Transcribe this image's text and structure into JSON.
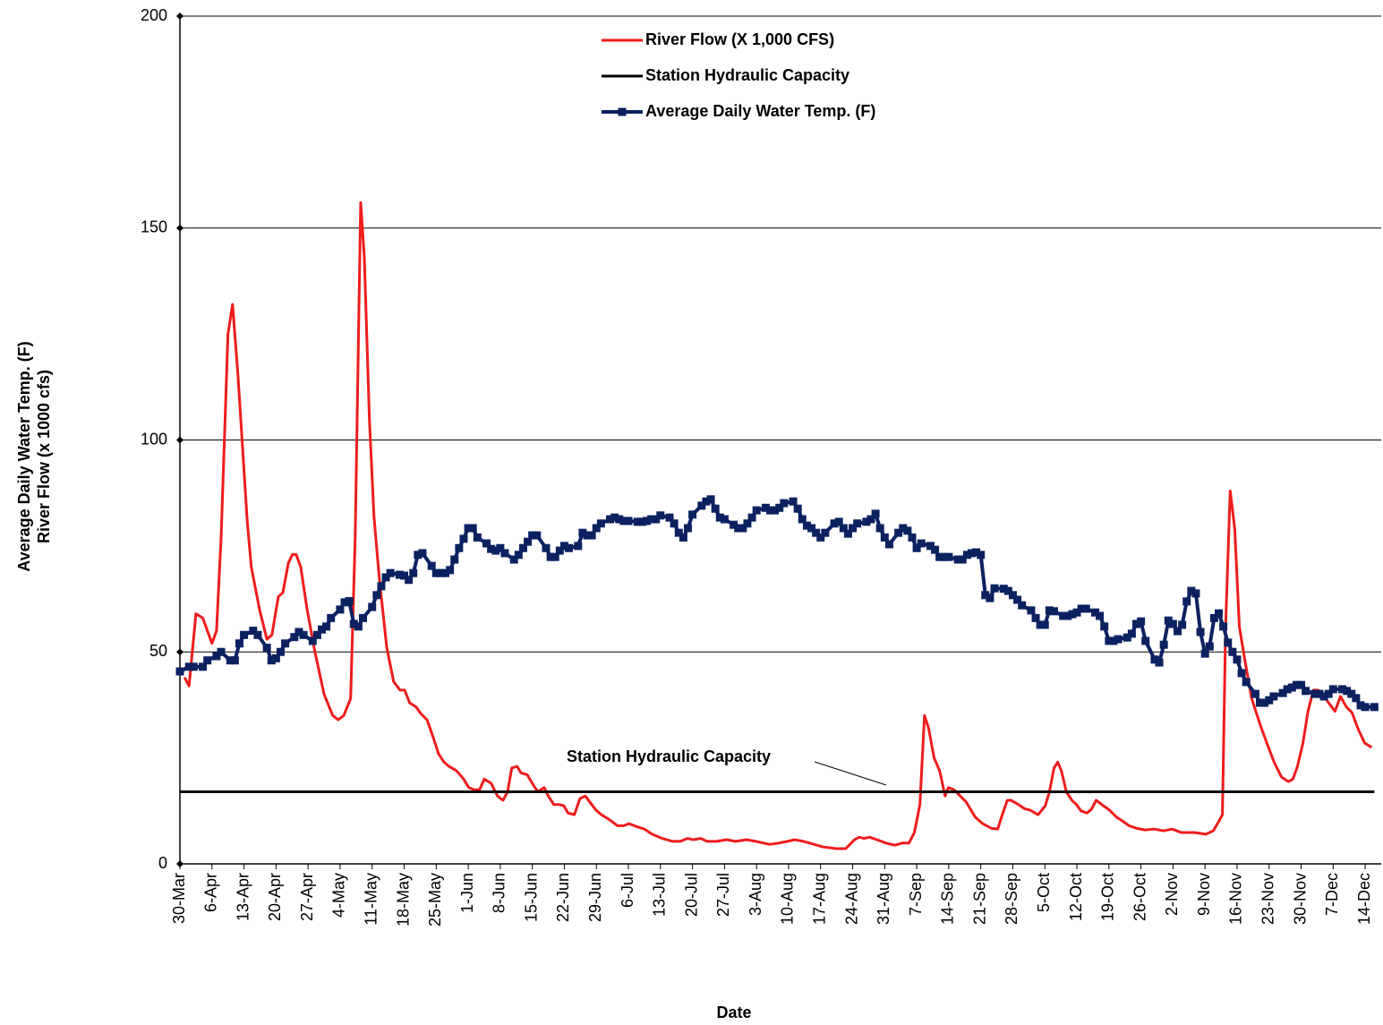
{
  "chart_data": {
    "type": "line",
    "x_label": "Date",
    "y_label": [
      "Average Daily Water Temp. (F)",
      "River Flow (x 1000 cfs)"
    ],
    "xlim": [
      0,
      262.5
    ],
    "ylim": [
      0,
      200
    ],
    "yticks": [
      0,
      50,
      100,
      150,
      200
    ],
    "xticks": [
      {
        "value": 0,
        "label": "30-Mar"
      },
      {
        "value": 7,
        "label": "6-Apr"
      },
      {
        "value": 14,
        "label": "13-Apr"
      },
      {
        "value": 21,
        "label": "20-Apr"
      },
      {
        "value": 28,
        "label": "27-Apr"
      },
      {
        "value": 35,
        "label": "4-May"
      },
      {
        "value": 42,
        "label": "11-May"
      },
      {
        "value": 49,
        "label": "18-May"
      },
      {
        "value": 56,
        "label": "25-May"
      },
      {
        "value": 63,
        "label": "1-Jun"
      },
      {
        "value": 70,
        "label": "8-Jun"
      },
      {
        "value": 77,
        "label": "15-Jun"
      },
      {
        "value": 84,
        "label": "22-Jun"
      },
      {
        "value": 91,
        "label": "29-Jun"
      },
      {
        "value": 98,
        "label": "6-Jul"
      },
      {
        "value": 105,
        "label": "13-Jul"
      },
      {
        "value": 112,
        "label": "20-Jul"
      },
      {
        "value": 119,
        "label": "27-Jul"
      },
      {
        "value": 126,
        "label": "3-Aug"
      },
      {
        "value": 133,
        "label": "10-Aug"
      },
      {
        "value": 140,
        "label": "17-Aug"
      },
      {
        "value": 147,
        "label": "24-Aug"
      },
      {
        "value": 154,
        "label": "31-Aug"
      },
      {
        "value": 161,
        "label": "7-Sep"
      },
      {
        "value": 168,
        "label": "14-Sep"
      },
      {
        "value": 175,
        "label": "21-Sep"
      },
      {
        "value": 182,
        "label": "28-Sep"
      },
      {
        "value": 189,
        "label": "5-Oct"
      },
      {
        "value": 196,
        "label": "12-Oct"
      },
      {
        "value": 203,
        "label": "19-Oct"
      },
      {
        "value": 210,
        "label": "26-Oct"
      },
      {
        "value": 217,
        "label": "2-Nov"
      },
      {
        "value": 224,
        "label": "9-Nov"
      },
      {
        "value": 231,
        "label": "16-Nov"
      },
      {
        "value": 238,
        "label": "23-Nov"
      },
      {
        "value": 245,
        "label": "30-Nov"
      },
      {
        "value": 252,
        "label": "7-Dec"
      },
      {
        "value": 259,
        "label": "14-Dec"
      }
    ],
    "grid": true,
    "legend": "top",
    "annotation": "Station Hydraulic Capacity",
    "series": [
      {
        "name": "River Flow (X 1,000 CFS)",
        "color": "#ee1c1c",
        "markers": false,
        "x": [
          1,
          2,
          3.5,
          5,
          6,
          7,
          8,
          9,
          10.5,
          11.5,
          12.7,
          14.7,
          15.6,
          17.4,
          19,
          20.1,
          21.5,
          22.5,
          23.7,
          24.6,
          25.4,
          26.4,
          27.8,
          29.5,
          31.5,
          33.4,
          34.6,
          35.8,
          37.3,
          38.3,
          39.5,
          40.3,
          41.4,
          42.4,
          43.6,
          45.2,
          46.7,
          48.1,
          49.1,
          50.2,
          51.6,
          52.6,
          54,
          55.3,
          56.5,
          57.7,
          58.8,
          60.4,
          62,
          63.1,
          64.3,
          65.5,
          66.5,
          68,
          69.4,
          70.6,
          71.6,
          72.5,
          73.7,
          74.5,
          75.9,
          77,
          78.2,
          79.6,
          80.5,
          81.7,
          82.9,
          83.9,
          84.8,
          86.2,
          87.4,
          88.6,
          89.7,
          90.9,
          92.1,
          93.3,
          94.4,
          95.6,
          97,
          98.1,
          99.5,
          101.5,
          103.2,
          105.4,
          107.7,
          109.3,
          110.9,
          112.2,
          113.8,
          115.2,
          117.1,
          119.5,
          121.4,
          123.8,
          125.9,
          128.8,
          130.8,
          132.7,
          134.3,
          136.3,
          138.6,
          140.5,
          143.5,
          145.5,
          147.4,
          148.4,
          149.5,
          150.7,
          152.3,
          154.3,
          156.2,
          157.8,
          159.3,
          160.5,
          161.7,
          162.7,
          163.6,
          164.8,
          166,
          167.2,
          167.9,
          169.1,
          170.5,
          171.8,
          173.8,
          175.4,
          177.3,
          178.7,
          179.7,
          180.8,
          181.6,
          183.2,
          184.6,
          185.7,
          187.5,
          189.1,
          190,
          191,
          191.8,
          192.6,
          193.7,
          194.9,
          195.9,
          196.9,
          198.2,
          199.2,
          200.2,
          201.8,
          203.1,
          204.7,
          206.1,
          207.4,
          209,
          210.9,
          212.9,
          214.9,
          216.8,
          218.8,
          221.7,
          224.2,
          225.8,
          227,
          227.8,
          228.5,
          229.5,
          230.5,
          231.5,
          232.8,
          234.2,
          236,
          237.5,
          239.1,
          240.7,
          242.2,
          243.2,
          244.2,
          245.4,
          246.5,
          247.7,
          248.7,
          249.7,
          251,
          252.4,
          253.6,
          254.9,
          256.1,
          257.5,
          258.9,
          260.4
        ],
        "values": [
          44,
          42,
          59,
          58,
          55,
          52,
          55,
          77,
          125,
          132,
          115,
          81,
          70,
          60,
          53,
          54,
          63,
          64,
          71,
          73,
          73,
          70,
          60,
          50,
          40,
          35,
          34,
          35,
          39,
          77,
          156,
          143,
          105,
          82,
          67,
          51,
          43,
          41,
          41,
          38,
          37,
          35.5,
          34,
          30,
          26,
          24,
          23,
          22,
          20,
          18,
          17.5,
          17.5,
          20,
          19,
          16,
          15,
          17,
          22.6,
          23,
          21.5,
          21,
          19,
          17,
          18,
          16,
          14,
          14,
          13.7,
          12,
          11.6,
          15.4,
          16,
          14.4,
          12.7,
          11.6,
          10.8,
          10,
          9,
          9,
          9.5,
          8.9,
          8.2,
          7,
          6,
          5.3,
          5.3,
          6,
          5.7,
          6,
          5.3,
          5.3,
          5.7,
          5.3,
          5.7,
          5.3,
          4.6,
          4.9,
          5.3,
          5.7,
          5.3,
          4.6,
          4,
          3.6,
          3.6,
          5.7,
          6.3,
          6,
          6.3,
          5.7,
          4.9,
          4.4,
          4.9,
          4.9,
          7.4,
          14,
          35,
          32,
          25,
          22,
          16,
          18,
          17.5,
          16,
          14.6,
          11,
          9.5,
          8.4,
          8.2,
          11.6,
          15,
          15,
          14,
          13,
          12.7,
          11.6,
          13.7,
          17,
          22.6,
          24,
          22,
          17,
          15,
          14,
          12.5,
          12,
          12.9,
          15,
          13.7,
          12.7,
          11,
          10,
          9,
          8.4,
          8,
          8.2,
          7.8,
          8.2,
          7.4,
          7.4,
          7,
          7.8,
          10,
          11.6,
          56,
          88,
          79,
          56,
          47.5,
          39,
          33,
          28.5,
          24,
          20.5,
          19.4,
          20,
          23,
          28.5,
          36,
          41,
          41,
          40,
          38,
          36,
          39.5,
          37,
          35.7,
          31.7,
          28.5,
          27.5
        ]
      },
      {
        "name": "Station Hydraulic Capacity",
        "color": "#000000",
        "markers": false,
        "x": [
          0,
          261
        ],
        "values": [
          17,
          17
        ]
      },
      {
        "name": "Average Daily Water Temp. (F)",
        "color": "#0b2160",
        "markers": true,
        "x": [
          0,
          2,
          3,
          5,
          6,
          8,
          9,
          11,
          12,
          13,
          14,
          16,
          17,
          19,
          20,
          21,
          22,
          23,
          25,
          26,
          27,
          29,
          30,
          31,
          32,
          33,
          35,
          36,
          37,
          38,
          39,
          40,
          42,
          43,
          44,
          45,
          46,
          48,
          49,
          50,
          51,
          52,
          53,
          55,
          56,
          57,
          58,
          59,
          60,
          61,
          62,
          63,
          64,
          65,
          67,
          68,
          69,
          70,
          71,
          73,
          74,
          75,
          76,
          77,
          78,
          80,
          81,
          82,
          83,
          84,
          85,
          87,
          88,
          89,
          90,
          91,
          92,
          94,
          95,
          96,
          97,
          98,
          100,
          101,
          102,
          103,
          104,
          105,
          107,
          108,
          109,
          110,
          111,
          112,
          114,
          115,
          116,
          117,
          118,
          119,
          121,
          122,
          123,
          124,
          125,
          126,
          128,
          129,
          130,
          131,
          132,
          134,
          135,
          136,
          137,
          138,
          139,
          140,
          141,
          143,
          144,
          145,
          146,
          147,
          148,
          150,
          151,
          152,
          153,
          154,
          155,
          157,
          158,
          159,
          160,
          161,
          162,
          164,
          165,
          166,
          167,
          168,
          170,
          171,
          172,
          173,
          174,
          175,
          176,
          177,
          178,
          180,
          181,
          182,
          183,
          184,
          186,
          187,
          188,
          189,
          190,
          191,
          193,
          194,
          195,
          196,
          197,
          198,
          200,
          201,
          202,
          203,
          204,
          205,
          207,
          208,
          209,
          210,
          211,
          213,
          214,
          215,
          216,
          217,
          218,
          219,
          220,
          221,
          222,
          223,
          224,
          225,
          226,
          227,
          228,
          229,
          230,
          231,
          232,
          233,
          235,
          236,
          237,
          238,
          239,
          241,
          242,
          243,
          244,
          245,
          246,
          248,
          249,
          250,
          251,
          252,
          254,
          255,
          256,
          257,
          258,
          259,
          261
        ],
        "values": [
          45.4,
          46.5,
          46.5,
          46.5,
          48,
          49,
          50,
          48,
          48,
          52,
          54,
          55,
          54,
          51,
          48,
          48.5,
          50,
          52,
          53.5,
          54.7,
          54,
          52.6,
          54,
          55.3,
          56,
          58,
          60,
          61.7,
          62,
          56.6,
          56,
          58,
          60.6,
          63.4,
          65.5,
          67.6,
          68.6,
          68.2,
          68,
          67,
          68.6,
          72.9,
          73.3,
          70.3,
          68.6,
          68.6,
          68.6,
          69.3,
          71.8,
          74.5,
          76.7,
          79.2,
          79.2,
          77,
          75.6,
          74.3,
          73.9,
          74.5,
          73.3,
          71.8,
          72.9,
          74.5,
          76,
          77.5,
          77.5,
          74.5,
          72.4,
          72.4,
          73.9,
          75,
          74.5,
          75,
          78.1,
          77.5,
          77.5,
          79.2,
          80.3,
          81.3,
          81.7,
          81.3,
          80.9,
          80.9,
          80.7,
          80.7,
          80.9,
          81.3,
          81.3,
          82.2,
          81.7,
          80.3,
          78.1,
          77,
          79.2,
          82.4,
          84.5,
          85.5,
          86,
          83.8,
          81.7,
          81.3,
          80,
          79.2,
          79.2,
          80.3,
          81.7,
          83.4,
          84,
          83.4,
          83.4,
          84,
          85.1,
          85.5,
          83.8,
          81.3,
          79.8,
          79.2,
          78.1,
          77,
          78.1,
          80.3,
          80.7,
          79.2,
          77.9,
          79.2,
          80.3,
          80.7,
          81.3,
          82.6,
          79.2,
          77,
          75.4,
          78.1,
          79.2,
          78.6,
          77,
          74.5,
          75.6,
          75,
          74.1,
          72.4,
          72.4,
          72.4,
          71.8,
          71.8,
          72.9,
          73.3,
          73.5,
          72.9,
          63.4,
          62.7,
          65,
          64.9,
          64.4,
          63.4,
          62.3,
          61,
          59.8,
          58,
          56.4,
          56.4,
          59.8,
          59.6,
          58.5,
          58.5,
          58.9,
          59.3,
          60.2,
          60.2,
          59.3,
          58.5,
          56,
          52.6,
          52.6,
          53,
          53.4,
          54.3,
          56.6,
          57.2,
          52.6,
          48.2,
          47.5,
          51.7,
          57.4,
          56.6,
          54.9,
          56.4,
          61.9,
          64.4,
          63.8,
          54.7,
          49.6,
          51.3,
          58,
          59.1,
          56,
          52.2,
          50,
          48.2,
          45,
          42.9,
          40.1,
          38,
          38,
          38.6,
          39.5,
          40.3,
          41.2,
          41.6,
          42.2,
          42.2,
          40.8,
          40.1,
          40.1,
          39.5,
          40.1,
          41.2,
          41.2,
          40.8,
          40.1,
          39.1,
          37.4,
          37,
          37
        ]
      }
    ]
  }
}
